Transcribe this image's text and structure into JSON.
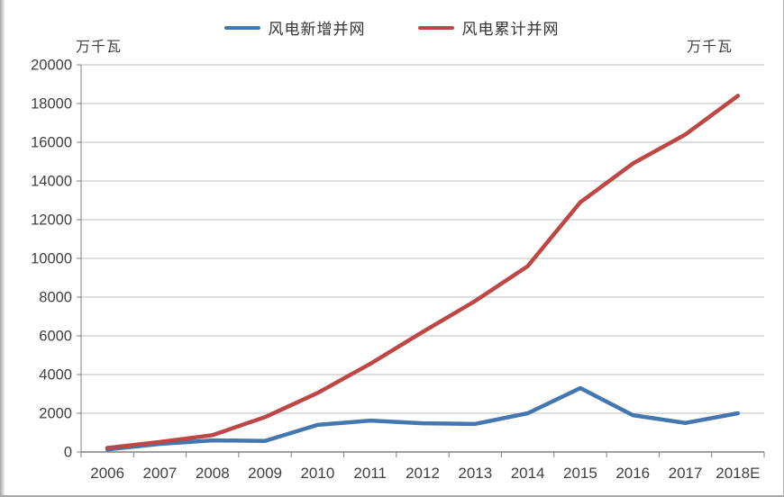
{
  "legend": {
    "new_label": "风电新增并网",
    "cum_label": "风电累计并网"
  },
  "units": {
    "left": "万千瓦",
    "right": "万千瓦"
  },
  "chart_data": {
    "type": "line",
    "title": "",
    "xlabel": "",
    "ylabel": "万千瓦",
    "categories": [
      "2006",
      "2007",
      "2008",
      "2009",
      "2010",
      "2011",
      "2012",
      "2013",
      "2014",
      "2015",
      "2016",
      "2017",
      "2018E"
    ],
    "series": [
      {
        "name": "风电新增并网",
        "color": "#4476AF",
        "values": [
          130,
          420,
          600,
          570,
          1400,
          1620,
          1480,
          1450,
          2000,
          3300,
          1900,
          1500,
          2000
        ]
      },
      {
        "name": "风电累计并网",
        "color": "#BE4746",
        "values": [
          210,
          520,
          870,
          1800,
          3050,
          4550,
          6200,
          7800,
          9600,
          12900,
          14900,
          16400,
          18400
        ]
      }
    ],
    "ylim": [
      0,
      20000
    ],
    "ytick_step": 2000,
    "yticks": [
      0,
      2000,
      4000,
      6000,
      8000,
      10000,
      12000,
      14000,
      16000,
      18000,
      20000
    ],
    "grid": true,
    "legend_position": "top-center",
    "colors": {
      "gridline": "#BFBFBF",
      "axis": "#808080",
      "tick_text": "#3F3F3F"
    }
  }
}
